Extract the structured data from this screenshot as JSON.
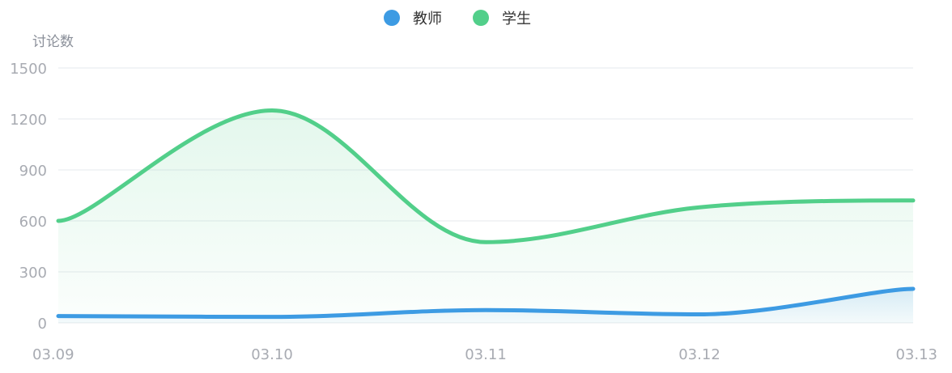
{
  "chart_data": {
    "type": "area",
    "ylabel": "讨论数",
    "categories": [
      "03.09",
      "03.10",
      "03.11",
      "03.12",
      "03.13"
    ],
    "ylim": [
      0,
      1500
    ],
    "yticks": [
      0,
      300,
      600,
      900,
      1200,
      1500
    ],
    "grid": true,
    "legend_position": "top-center",
    "series": [
      {
        "name": "教师",
        "values": [
          40,
          35,
          75,
          50,
          200
        ],
        "color": "#3d9be3"
      },
      {
        "name": "学生",
        "values": [
          600,
          1250,
          475,
          680,
          720
        ],
        "color": "#52cf8a"
      }
    ],
    "smooth": true
  }
}
